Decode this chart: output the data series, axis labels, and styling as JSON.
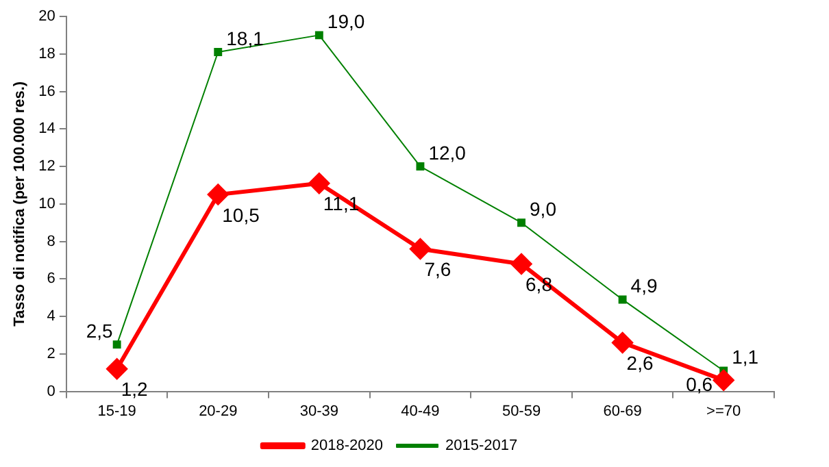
{
  "chart_data": {
    "type": "line",
    "ylabel": "Tasso di notifica (per 100.000 res.)",
    "categories": [
      "15-19",
      "20-29",
      "30-39",
      "40-49",
      "50-59",
      "60-69",
      ">=70"
    ],
    "series": [
      {
        "name": "2018-2020",
        "color": "#ff0000",
        "marker": "diamond",
        "values": [
          1.2,
          10.5,
          11.1,
          7.6,
          6.8,
          2.6,
          0.6
        ],
        "value_labels": [
          "1,2",
          "10,5",
          "11,1",
          "7,6",
          "6,8",
          "2,6",
          "0,6"
        ]
      },
      {
        "name": "2015-2017",
        "color": "#008000",
        "marker": "square",
        "values": [
          2.5,
          18.1,
          19.0,
          12.0,
          9.0,
          4.9,
          1.1
        ],
        "value_labels": [
          "2,5",
          "18,1",
          "19,0",
          "12,0",
          "9,0",
          "4,9",
          "1,1"
        ]
      }
    ],
    "ylim": [
      0,
      20
    ],
    "yticks": [
      0,
      2,
      4,
      6,
      8,
      10,
      12,
      14,
      16,
      18,
      20
    ],
    "grid": false,
    "legend": "bottom"
  }
}
